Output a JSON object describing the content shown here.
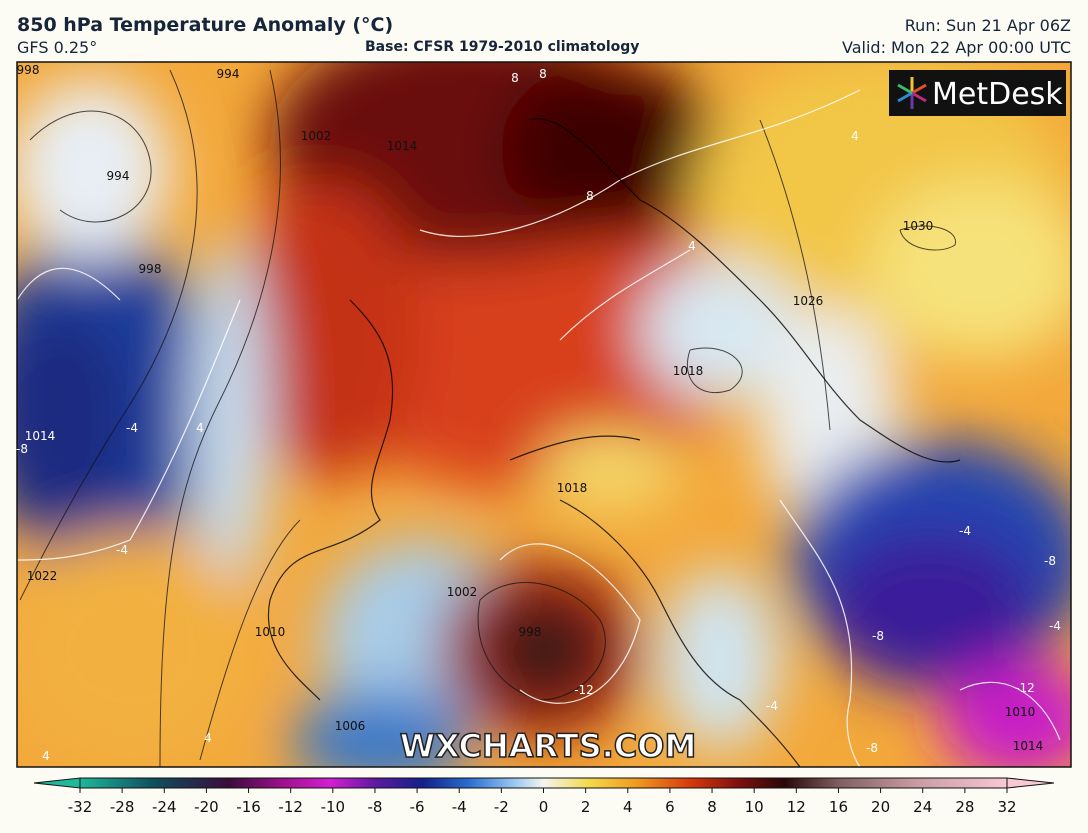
{
  "header": {
    "title": "850 hPa Temperature Anomaly (°C)",
    "model": "GFS 0.25°",
    "base": "Base: CFSR 1979-2010 climatology",
    "run": "Run: Sun 21 Apr 06Z",
    "valid": "Valid: Mon 22 Apr 00:00 UTC"
  },
  "logo": "MetDesk",
  "watermark": "WXCHARTS.COM",
  "map_labels": [
    "998",
    "994",
    "994",
    "998",
    "1002",
    "1014",
    "8",
    "8",
    "8",
    "4",
    "4",
    "1030",
    "1026",
    "1018",
    "1018",
    "1014",
    "-8",
    "-4",
    "-4",
    "4",
    "1022",
    "1010",
    "1002",
    "998",
    "-12",
    "1006",
    "-4",
    "-4",
    "-8",
    "-8",
    "-4",
    "-12",
    "1010",
    "1014",
    "-8",
    "4",
    "4"
  ],
  "colorbar": {
    "ticks": [
      -32,
      -28,
      -24,
      -20,
      -16,
      -12,
      -10,
      -8,
      -6,
      -4,
      -2,
      0,
      2,
      4,
      6,
      8,
      10,
      12,
      16,
      20,
      24,
      28,
      32
    ]
  }
}
